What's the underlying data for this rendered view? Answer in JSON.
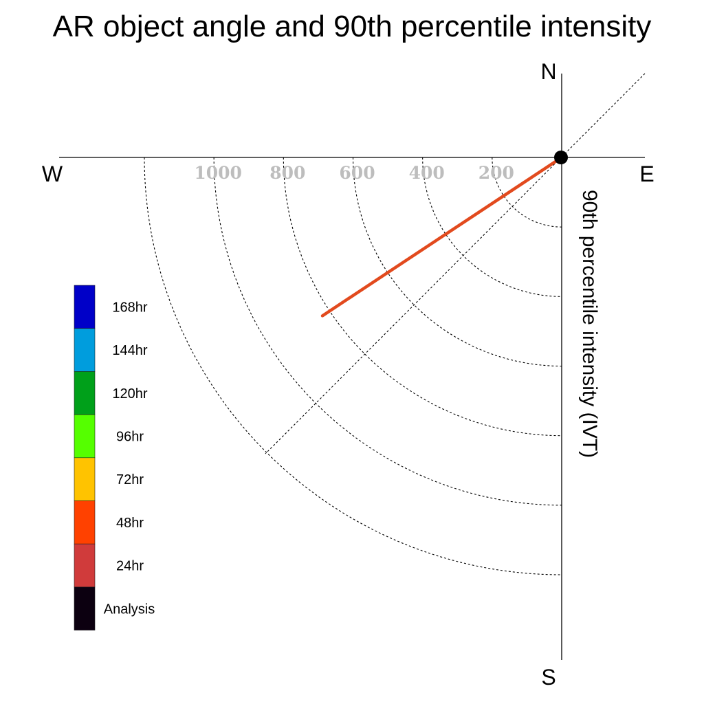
{
  "chart_data": {
    "type": "polar-line",
    "title": "AR object angle and 90th percentile intensity",
    "axis_title": "90th percentile intensity (IVT)",
    "compass": {
      "north": "N",
      "south": "S",
      "east": "E",
      "west": "W"
    },
    "ring_labels": [
      "200",
      "400",
      "600",
      "800",
      "1000"
    ],
    "ring_values": [
      200,
      400,
      600,
      800,
      1000,
      1200
    ],
    "radial_max": 1200,
    "diagonal_reference_deg": 45,
    "series": [
      {
        "angle_deg": 33.5,
        "intensity": 825,
        "color": "#e24a1e"
      }
    ],
    "legend": [
      {
        "label": "168hr",
        "color": "#0000c8"
      },
      {
        "label": "144hr",
        "color": "#009ddd"
      },
      {
        "label": "120hr",
        "color": "#00a01a"
      },
      {
        "label": "96hr",
        "color": "#55ff00"
      },
      {
        "label": "72hr",
        "color": "#ffc300"
      },
      {
        "label": "48hr",
        "color": "#ff4100"
      },
      {
        "label": "24hr",
        "color": "#d03b3b"
      },
      {
        "label": "Analysis",
        "color": "#0c0010"
      }
    ]
  }
}
